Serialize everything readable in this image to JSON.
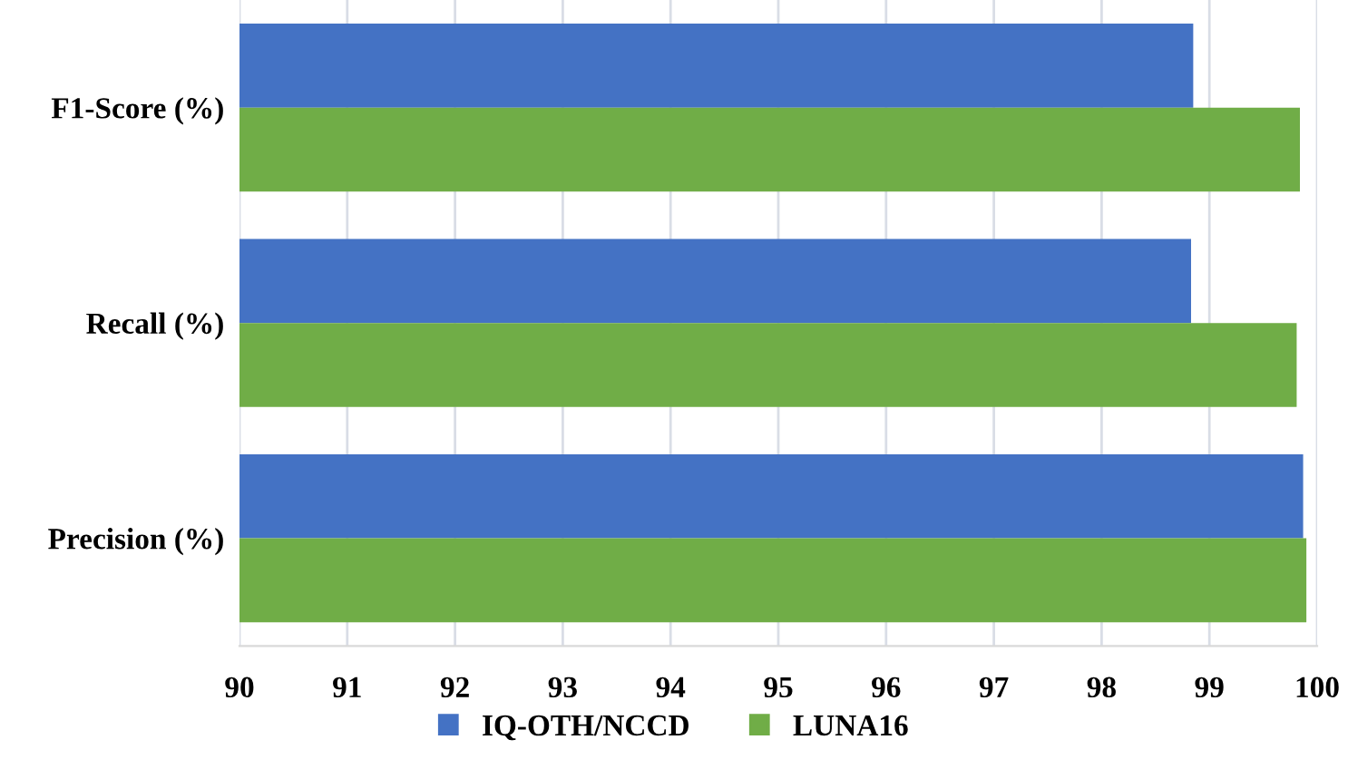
{
  "chart_data": {
    "type": "bar",
    "orientation": "horizontal",
    "categories": [
      "F1-Score (%)",
      "Recall (%)",
      "Precision (%)"
    ],
    "series": [
      {
        "name": "IQ-OTH/NCCD",
        "color": "#4472c4",
        "values": [
          98.85,
          98.83,
          99.87
        ]
      },
      {
        "name": "LUNA16",
        "color": "#70ad47",
        "values": [
          99.84,
          99.81,
          99.9
        ]
      }
    ],
    "xlim": [
      90,
      100
    ],
    "xticks": [
      90,
      91,
      92,
      93,
      94,
      95,
      96,
      97,
      98,
      99,
      100
    ],
    "grid": "x",
    "legend": "bottom"
  }
}
